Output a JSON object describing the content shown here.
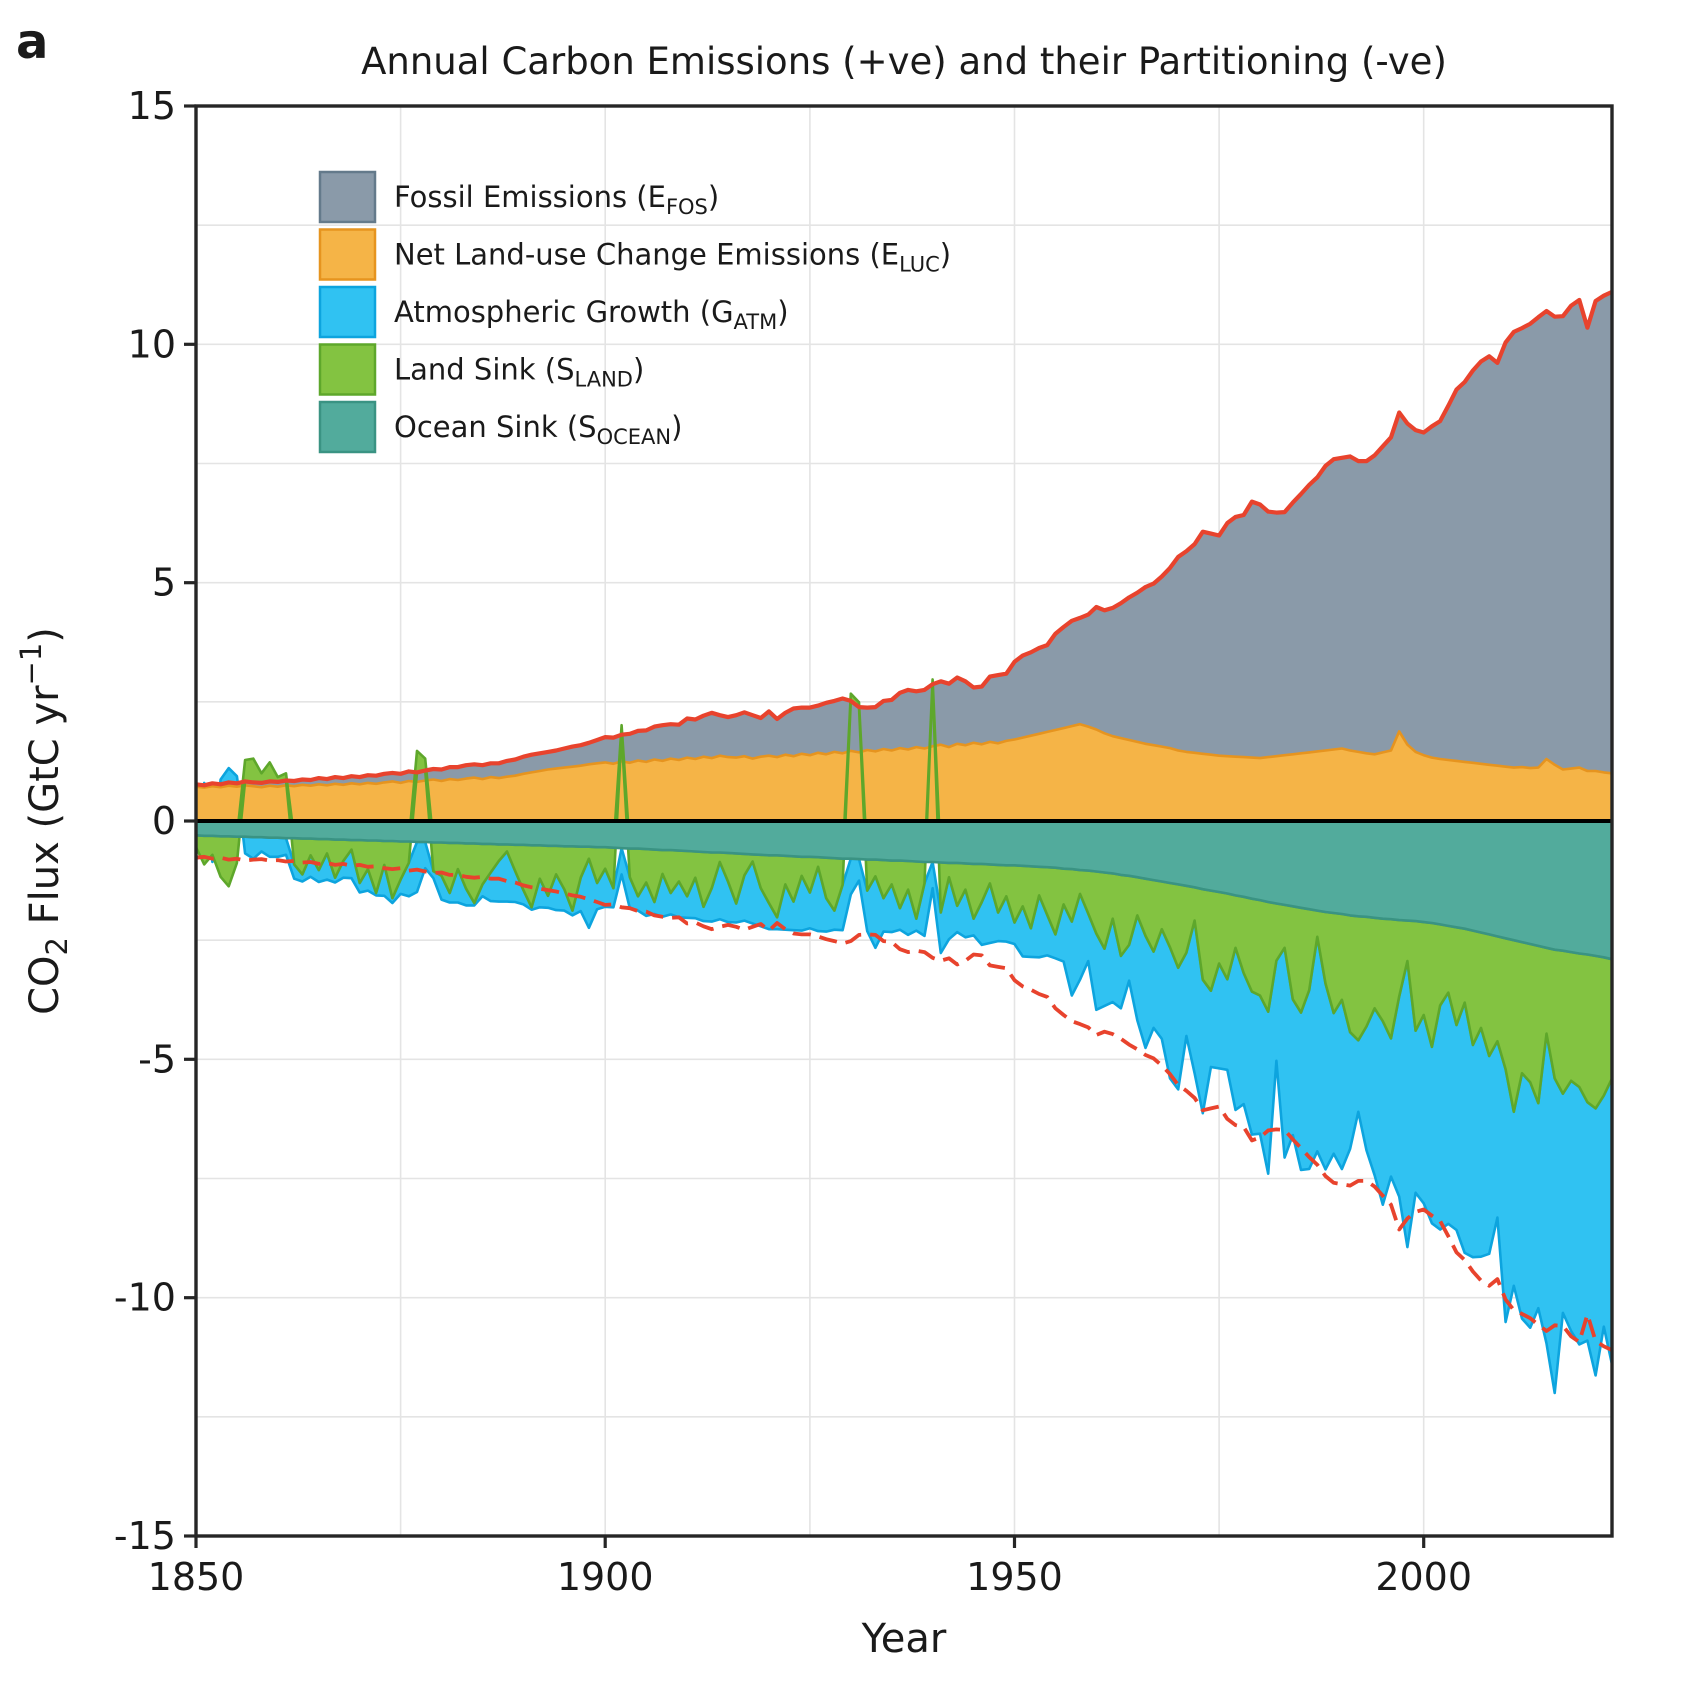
{
  "figure": {
    "panel_label": "a",
    "title": "Annual Carbon Emissions (+ve) and their Partitioning (-ve)",
    "xlabel": "Year",
    "ylabel_parts": [
      [
        "CO",
        "n"
      ],
      [
        "2",
        "sub"
      ],
      [
        " Flux (GtC yr",
        "n"
      ],
      [
        "−1",
        "sup"
      ],
      [
        ")",
        "n"
      ]
    ]
  },
  "axes": {
    "x_min": 1850,
    "x_max": 2023,
    "y_min": -15,
    "y_max": 15,
    "x_ticks": [
      1850,
      1900,
      1950,
      2000
    ],
    "y_ticks": [
      15,
      10,
      5,
      0,
      -5,
      -10,
      -15
    ],
    "x_gridlines": [
      1875,
      1900,
      1925,
      1950,
      1975,
      2000
    ],
    "y_grid_step": 2.5,
    "grid_color": "#e4e4e4",
    "spine_color": "#262626",
    "zero_line_color": "#000000"
  },
  "legend": {
    "items": [
      {
        "key": "efos",
        "pre": "Fossil Emissions (E",
        "sub": "FOS",
        "post": ")"
      },
      {
        "key": "eluc",
        "pre": "Net Land-use Change Emissions (E",
        "sub": "LUC",
        "post": ")"
      },
      {
        "key": "gatm",
        "pre": "Atmospheric Growth (G",
        "sub": "ATM",
        "post": ")"
      },
      {
        "key": "sland",
        "pre": "Land Sink (S",
        "sub": "LAND",
        "post": ")"
      },
      {
        "key": "socean",
        "pre": "Ocean Sink (S",
        "sub": "OCEAN",
        "post": ")"
      }
    ]
  },
  "chart_data": {
    "type": "area",
    "units": "GtC yr-1",
    "stacking": "Positive side: E_LUC then E_FOS stacked up from 0 (years with negative sink values appear as bumps stacked above the total). Negative side: S_OCEAN, S_LAND, G_ATM stacked down from 0. Solid red line = E_FOS+E_LUC; dashed red line = -(E_FOS+E_LUC).",
    "years": [
      1850,
      1851,
      1852,
      1853,
      1854,
      1855,
      1856,
      1857,
      1858,
      1859,
      1860,
      1861,
      1862,
      1863,
      1864,
      1865,
      1866,
      1867,
      1868,
      1869,
      1870,
      1871,
      1872,
      1873,
      1874,
      1875,
      1876,
      1877,
      1878,
      1879,
      1880,
      1881,
      1882,
      1883,
      1884,
      1885,
      1886,
      1887,
      1888,
      1889,
      1890,
      1891,
      1892,
      1893,
      1894,
      1895,
      1896,
      1897,
      1898,
      1899,
      1900,
      1901,
      1902,
      1903,
      1904,
      1905,
      1906,
      1907,
      1908,
      1909,
      1910,
      1911,
      1912,
      1913,
      1914,
      1915,
      1916,
      1917,
      1918,
      1919,
      1920,
      1921,
      1922,
      1923,
      1924,
      1925,
      1926,
      1927,
      1928,
      1929,
      1930,
      1931,
      1932,
      1933,
      1934,
      1935,
      1936,
      1937,
      1938,
      1939,
      1940,
      1941,
      1942,
      1943,
      1944,
      1945,
      1946,
      1947,
      1948,
      1949,
      1950,
      1951,
      1952,
      1953,
      1954,
      1955,
      1956,
      1957,
      1958,
      1959,
      1960,
      1961,
      1962,
      1963,
      1964,
      1965,
      1966,
      1967,
      1968,
      1969,
      1970,
      1971,
      1972,
      1973,
      1974,
      1975,
      1976,
      1977,
      1978,
      1979,
      1980,
      1981,
      1982,
      1983,
      1984,
      1985,
      1986,
      1987,
      1988,
      1989,
      1990,
      1991,
      1992,
      1993,
      1994,
      1995,
      1996,
      1997,
      1998,
      1999,
      2000,
      2001,
      2002,
      2003,
      2004,
      2005,
      2006,
      2007,
      2008,
      2009,
      2010,
      2011,
      2012,
      2013,
      2014,
      2015,
      2016,
      2017,
      2018,
      2019,
      2020,
      2021,
      2022,
      2023
    ],
    "series": [
      {
        "key": "efos",
        "name": "Fossil Emissions (E_FOS)",
        "side": "positive",
        "fill": "#8a9aa9",
        "edge": "#647a8b",
        "values": [
          0.05,
          0.05,
          0.06,
          0.06,
          0.07,
          0.07,
          0.08,
          0.08,
          0.09,
          0.09,
          0.1,
          0.1,
          0.11,
          0.11,
          0.12,
          0.13,
          0.13,
          0.14,
          0.14,
          0.15,
          0.15,
          0.16,
          0.17,
          0.18,
          0.18,
          0.19,
          0.2,
          0.2,
          0.21,
          0.22,
          0.24,
          0.25,
          0.27,
          0.28,
          0.28,
          0.29,
          0.29,
          0.31,
          0.33,
          0.34,
          0.36,
          0.37,
          0.37,
          0.37,
          0.38,
          0.4,
          0.42,
          0.43,
          0.45,
          0.49,
          0.53,
          0.55,
          0.56,
          0.61,
          0.62,
          0.66,
          0.69,
          0.75,
          0.72,
          0.74,
          0.82,
          0.83,
          0.86,
          0.95,
          0.85,
          0.84,
          0.89,
          0.92,
          0.91,
          0.81,
          0.93,
          0.8,
          0.88,
          1.0,
          0.97,
          1.0,
          0.99,
          1.08,
          1.07,
          1.15,
          1.05,
          0.95,
          0.89,
          0.93,
          1.01,
          1.06,
          1.16,
          1.25,
          1.17,
          1.23,
          1.3,
          1.33,
          1.33,
          1.39,
          1.34,
          1.16,
          1.21,
          1.37,
          1.43,
          1.41,
          1.63,
          1.72,
          1.75,
          1.8,
          1.82,
          2.02,
          2.12,
          2.21,
          2.23,
          2.35,
          2.57,
          2.58,
          2.69,
          2.83,
          2.99,
          3.13,
          3.29,
          3.39,
          3.57,
          3.78,
          4.06,
          4.21,
          4.38,
          4.66,
          4.64,
          4.62,
          4.89,
          5.03,
          5.08,
          5.37,
          5.32,
          5.15,
          5.11,
          5.1,
          5.28,
          5.44,
          5.61,
          5.75,
          5.97,
          6.09,
          6.1,
          6.17,
          6.1,
          6.13,
          6.27,
          6.42,
          6.57,
          6.69,
          6.74,
          6.75,
          6.77,
          6.95,
          7.09,
          7.43,
          7.79,
          7.97,
          8.23,
          8.44,
          8.57,
          8.45,
          8.9,
          9.14,
          9.21,
          9.32,
          9.45,
          9.4,
          9.4,
          9.51,
          9.71,
          9.81,
          9.3,
          9.86,
          10.0,
          10.1
        ]
      },
      {
        "key": "eluc",
        "name": "Net Land-use Change Emissions (E_LUC)",
        "side": "positive",
        "fill": "#f5b447",
        "edge": "#e6941f",
        "values": [
          0.72,
          0.7,
          0.73,
          0.71,
          0.74,
          0.72,
          0.75,
          0.73,
          0.71,
          0.74,
          0.72,
          0.75,
          0.73,
          0.76,
          0.74,
          0.77,
          0.75,
          0.78,
          0.76,
          0.79,
          0.77,
          0.8,
          0.78,
          0.81,
          0.83,
          0.8,
          0.84,
          0.82,
          0.85,
          0.87,
          0.84,
          0.88,
          0.86,
          0.89,
          0.91,
          0.88,
          0.92,
          0.9,
          0.93,
          0.95,
          0.99,
          1.02,
          1.05,
          1.08,
          1.1,
          1.12,
          1.14,
          1.16,
          1.19,
          1.21,
          1.23,
          1.2,
          1.25,
          1.22,
          1.27,
          1.24,
          1.29,
          1.26,
          1.31,
          1.28,
          1.33,
          1.3,
          1.35,
          1.32,
          1.37,
          1.34,
          1.33,
          1.36,
          1.31,
          1.35,
          1.37,
          1.34,
          1.39,
          1.36,
          1.41,
          1.38,
          1.43,
          1.4,
          1.45,
          1.42,
          1.47,
          1.44,
          1.49,
          1.46,
          1.51,
          1.48,
          1.53,
          1.5,
          1.55,
          1.52,
          1.57,
          1.6,
          1.55,
          1.62,
          1.59,
          1.64,
          1.61,
          1.66,
          1.63,
          1.68,
          1.71,
          1.75,
          1.79,
          1.83,
          1.87,
          1.91,
          1.95,
          1.99,
          2.03,
          1.98,
          1.92,
          1.84,
          1.78,
          1.74,
          1.7,
          1.66,
          1.62,
          1.59,
          1.56,
          1.53,
          1.48,
          1.45,
          1.43,
          1.41,
          1.39,
          1.37,
          1.36,
          1.35,
          1.34,
          1.33,
          1.32,
          1.34,
          1.36,
          1.38,
          1.4,
          1.42,
          1.44,
          1.46,
          1.48,
          1.5,
          1.52,
          1.48,
          1.45,
          1.42,
          1.4,
          1.44,
          1.48,
          1.88,
          1.6,
          1.45,
          1.38,
          1.33,
          1.3,
          1.28,
          1.26,
          1.24,
          1.22,
          1.2,
          1.18,
          1.16,
          1.14,
          1.12,
          1.13,
          1.11,
          1.12,
          1.3,
          1.18,
          1.08,
          1.1,
          1.12,
          1.05,
          1.05,
          1.02,
          1.0
        ]
      },
      {
        "key": "gatm",
        "name": "Atmospheric Growth (G_ATM)",
        "side": "negative",
        "fill": "#30c2f2",
        "edge": "#0da4de",
        "values": [
          0.05,
          -0.05,
          0.15,
          -0.1,
          -0.3,
          -0.15,
          0.35,
          0.45,
          0.3,
          0.4,
          0.4,
          0.35,
          0.3,
          0.15,
          0.45,
          0.25,
          0.55,
          0.1,
          0.35,
          0.6,
          0.2,
          0.45,
          0.05,
          0.65,
          0.1,
          0.3,
          0.7,
          1.05,
          0.55,
          0.15,
          0.5,
          0.2,
          0.7,
          0.35,
          0.05,
          0.25,
          0.6,
          0.85,
          1.05,
          0.65,
          0.3,
          0.05,
          0.6,
          0.25,
          0.75,
          0.45,
          0.1,
          0.7,
          1.45,
          0.55,
          0.8,
          0.4,
          0.55,
          0.65,
          0.3,
          0.7,
          0.25,
          0.9,
          0.45,
          0.75,
          0.45,
          0.85,
          0.3,
          0.7,
          1.2,
          0.85,
          0.4,
          0.95,
          1.3,
          0.8,
          0.55,
          0.25,
          0.95,
          0.6,
          1.15,
          0.75,
          1.35,
          0.7,
          0.4,
          0.95,
          0.75,
          0.45,
          0.85,
          1.5,
          0.7,
          1.0,
          0.45,
          0.95,
          0.25,
          1.1,
          0.55,
          0.85,
          1.3,
          0.55,
          1.0,
          0.35,
          0.9,
          1.25,
          0.6,
          0.95,
          0.45,
          1.05,
          0.6,
          1.3,
          0.85,
          0.5,
          1.2,
          1.55,
          1.8,
          1.0,
          1.6,
          1.2,
          1.75,
          1.1,
          0.75,
          2.2,
          2.35,
          1.6,
          2.3,
          2.75,
          2.55,
          1.75,
          3.2,
          2.8,
          1.6,
          2.2,
          1.9,
          3.4,
          2.75,
          3.0,
          2.9,
          3.4,
          2.1,
          4.4,
          2.85,
          3.3,
          3.75,
          4.5,
          3.9,
          2.95,
          3.55,
          2.45,
          1.5,
          2.6,
          3.5,
          3.85,
          2.9,
          4.2,
          6.0,
          3.4,
          3.95,
          3.7,
          4.7,
          4.85,
          4.3,
          5.25,
          4.45,
          4.8,
          4.15,
          3.7,
          5.3,
          3.65,
          5.15,
          5.15,
          4.3,
          6.5,
          6.6,
          4.6,
          5.25,
          5.4,
          5.0,
          5.6,
          4.85,
          6.0
        ]
      },
      {
        "key": "sland",
        "name": "Land Sink (S_LAND)",
        "side": "negative",
        "fill": "#83c341",
        "edge": "#5ea72b",
        "values": [
          0.25,
          0.6,
          0.4,
          0.85,
          1.05,
          0.55,
          -0.45,
          -0.5,
          -0.2,
          -0.4,
          -0.1,
          -0.15,
          0.55,
          0.75,
          0.35,
          0.65,
          0.3,
          0.8,
          0.45,
          0.2,
          0.9,
          0.6,
          1.1,
          0.5,
          1.2,
          0.8,
          0.45,
          -0.45,
          -0.25,
          0.6,
          0.7,
          1.05,
          0.55,
          0.95,
          1.25,
          0.85,
          0.6,
          0.35,
          0.15,
          0.55,
          0.95,
          1.3,
          0.7,
          1.05,
          0.6,
          0.9,
          1.35,
          0.65,
          0.25,
          0.75,
          0.45,
          0.85,
          -0.2,
          0.6,
          1.0,
          0.7,
          1.1,
          0.5,
          0.9,
          0.65,
          0.95,
          0.55,
          1.15,
          0.75,
          0.2,
          0.6,
          1.05,
          0.45,
          0.15,
          0.7,
          1.0,
          1.3,
          0.6,
          0.95,
          0.4,
          0.75,
          0.2,
          0.85,
          1.1,
          0.55,
          -0.15,
          -0.1,
          0.65,
          0.35,
          0.8,
          0.5,
          1.0,
          0.6,
          1.2,
          0.45,
          -0.1,
          1.05,
          0.3,
          0.9,
          0.55,
          1.15,
          0.8,
          0.4,
          1.0,
          0.65,
          1.2,
          0.85,
          1.3,
          0.6,
          1.0,
          1.4,
          0.75,
          1.1,
          0.5,
          0.9,
          1.3,
          1.6,
          0.95,
          1.7,
          1.45,
          0.8,
          1.2,
          1.5,
          1.0,
          1.35,
          1.75,
          1.4,
          0.7,
          1.9,
          2.1,
          1.5,
          1.8,
          1.1,
          1.6,
          1.95,
          2.0,
          2.3,
          1.2,
          0.9,
          1.95,
          2.2,
          1.7,
          0.55,
          1.5,
          2.1,
          1.8,
          2.45,
          2.6,
          2.3,
          1.9,
          2.15,
          2.5,
          1.6,
          0.85,
          2.3,
          1.95,
          2.6,
          1.7,
          1.4,
          2.05,
          1.55,
          2.4,
          2.0,
          2.55,
          2.2,
          2.75,
          3.6,
          2.75,
          2.9,
          3.3,
          1.8,
          2.7,
          3.0,
          2.7,
          2.8,
          3.1,
          3.2,
          2.9,
          2.5
        ]
      },
      {
        "key": "socean",
        "name": "Ocean Sink (S_OCEAN)",
        "side": "negative",
        "fill": "#52ab9c",
        "edge": "#3a9383",
        "values": [
          0.3,
          0.31,
          0.31,
          0.32,
          0.32,
          0.33,
          0.33,
          0.34,
          0.34,
          0.35,
          0.35,
          0.36,
          0.36,
          0.37,
          0.37,
          0.38,
          0.38,
          0.39,
          0.39,
          0.4,
          0.4,
          0.41,
          0.41,
          0.42,
          0.42,
          0.43,
          0.43,
          0.44,
          0.44,
          0.45,
          0.45,
          0.46,
          0.46,
          0.47,
          0.47,
          0.48,
          0.48,
          0.49,
          0.49,
          0.5,
          0.5,
          0.51,
          0.51,
          0.52,
          0.52,
          0.53,
          0.53,
          0.54,
          0.54,
          0.55,
          0.55,
          0.56,
          0.57,
          0.58,
          0.58,
          0.59,
          0.6,
          0.61,
          0.61,
          0.62,
          0.63,
          0.64,
          0.65,
          0.66,
          0.66,
          0.67,
          0.68,
          0.69,
          0.7,
          0.71,
          0.72,
          0.72,
          0.73,
          0.74,
          0.75,
          0.75,
          0.76,
          0.77,
          0.78,
          0.79,
          0.79,
          0.8,
          0.81,
          0.81,
          0.82,
          0.83,
          0.83,
          0.84,
          0.85,
          0.86,
          0.86,
          0.87,
          0.88,
          0.88,
          0.89,
          0.9,
          0.9,
          0.91,
          0.92,
          0.93,
          0.93,
          0.94,
          0.95,
          0.96,
          0.97,
          0.98,
          1.0,
          1.01,
          1.03,
          1.04,
          1.06,
          1.08,
          1.1,
          1.13,
          1.15,
          1.18,
          1.21,
          1.24,
          1.27,
          1.3,
          1.33,
          1.36,
          1.39,
          1.43,
          1.46,
          1.49,
          1.52,
          1.56,
          1.59,
          1.63,
          1.66,
          1.7,
          1.73,
          1.76,
          1.79,
          1.82,
          1.85,
          1.88,
          1.91,
          1.93,
          1.95,
          1.98,
          2.0,
          2.01,
          2.03,
          2.05,
          2.06,
          2.08,
          2.09,
          2.1,
          2.12,
          2.14,
          2.17,
          2.2,
          2.23,
          2.26,
          2.3,
          2.34,
          2.38,
          2.42,
          2.46,
          2.5,
          2.54,
          2.58,
          2.62,
          2.66,
          2.7,
          2.72,
          2.75,
          2.78,
          2.8,
          2.83,
          2.86,
          2.9
        ]
      }
    ],
    "total_line": {
      "name": "Total emissions (E_FOS + E_LUC)",
      "color": "#e8432d",
      "width": 4.2
    },
    "mirror_dashed_line": {
      "name": "Mirrored total emissions -(E_FOS + E_LUC)",
      "color": "#e8432d",
      "width": 3.8,
      "dash": [
        18,
        9
      ]
    }
  }
}
